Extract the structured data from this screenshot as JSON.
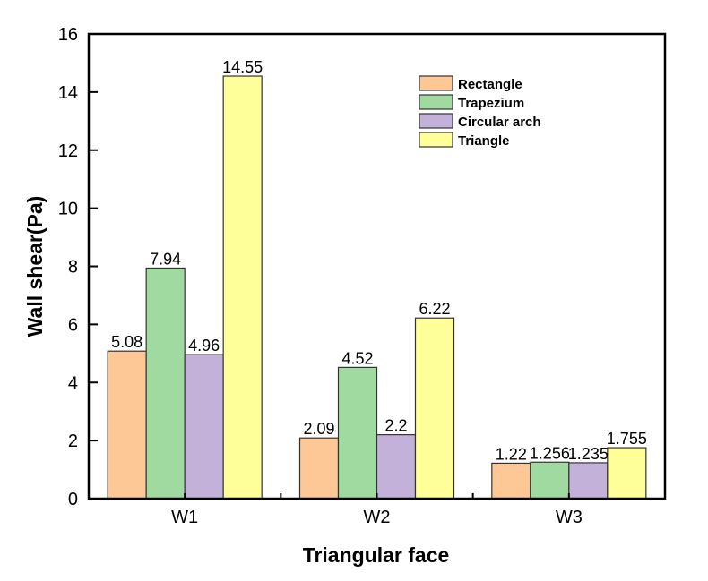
{
  "chart_data": {
    "type": "bar",
    "title": "",
    "xlabel": "Triangular face",
    "ylabel": "Wall shear(Pa)",
    "categories": [
      "W1",
      "W2",
      "W3"
    ],
    "ylim": [
      0,
      16
    ],
    "yticks": [
      0,
      2,
      4,
      6,
      8,
      10,
      12,
      14,
      16
    ],
    "grid": false,
    "legend_position": "top-right",
    "series": [
      {
        "name": "Rectangle",
        "color": "#FDC896",
        "values": [
          5.08,
          2.09,
          1.22
        ],
        "labels": [
          "5.08",
          "2.09",
          "1.22"
        ]
      },
      {
        "name": "Trapezium",
        "color": "#A0DAA0",
        "values": [
          7.94,
          4.52,
          1.256
        ],
        "labels": [
          "7.94",
          "4.52",
          "1.256"
        ]
      },
      {
        "name": "Circular arch",
        "color": "#C3B1D9",
        "values": [
          4.96,
          2.2,
          1.235
        ],
        "labels": [
          "4.96",
          "2.2",
          "1.235"
        ]
      },
      {
        "name": "Triangle",
        "color": "#FFFF99",
        "values": [
          14.55,
          6.22,
          1.755
        ],
        "labels": [
          "14.55",
          "6.22",
          "1.755"
        ]
      }
    ]
  }
}
